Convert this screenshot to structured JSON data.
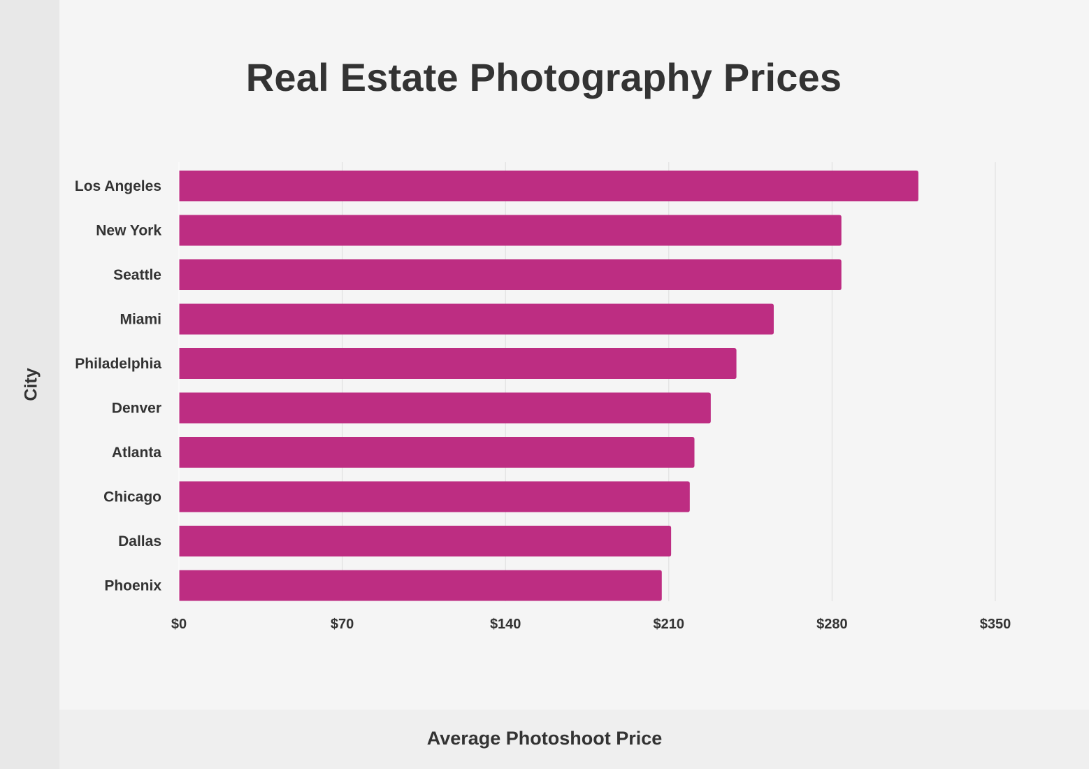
{
  "chart_data": {
    "type": "bar",
    "orientation": "horizontal",
    "title": "Real Estate Photography Prices",
    "xlabel": "Average Photoshoot Price",
    "ylabel": "City",
    "categories": [
      "Los Angeles",
      "New York",
      "Seattle",
      "Miami",
      "Philadelphia",
      "Denver",
      "Atlanta",
      "Chicago",
      "Dallas",
      "Phoenix"
    ],
    "values": [
      317,
      284,
      284,
      255,
      239,
      228,
      221,
      219,
      211,
      207
    ],
    "xlim": [
      0,
      350
    ],
    "xticks": [
      0,
      70,
      140,
      210,
      280,
      350
    ],
    "xtick_labels": [
      "$0",
      "$70",
      "$140",
      "$210",
      "$280",
      "$350"
    ],
    "grid": "vertical",
    "legend": "none",
    "bar_color": "#bd2d82",
    "grid_color": "#dddddd",
    "text_color": "#333333"
  }
}
